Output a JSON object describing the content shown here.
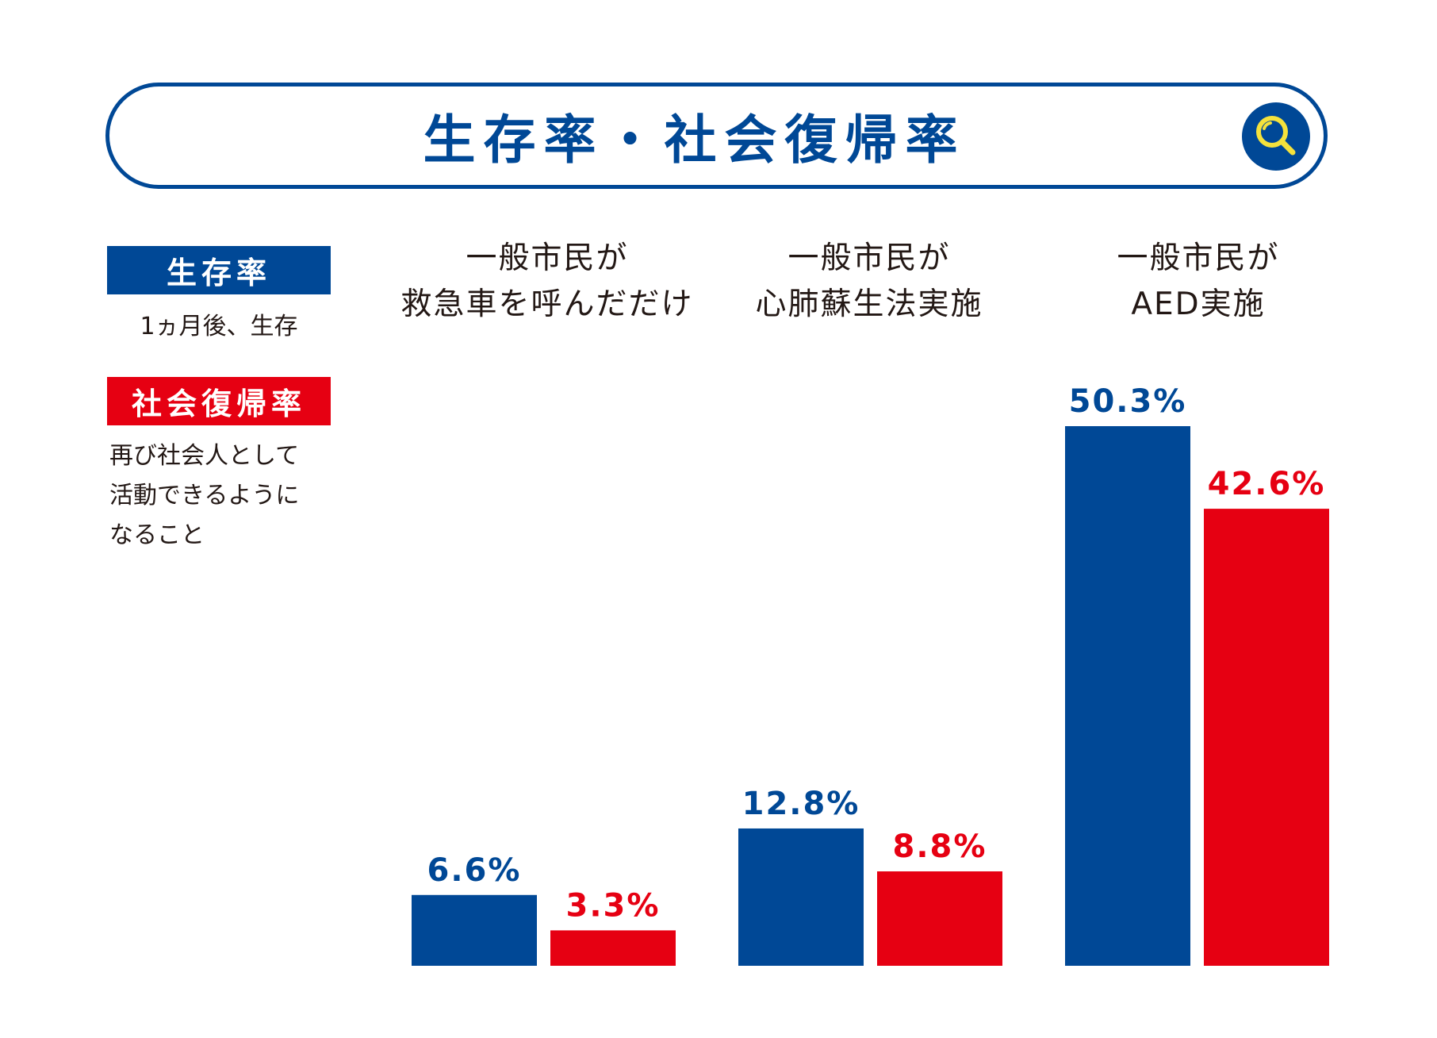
{
  "title": "生存率・社会復帰率",
  "icons": {
    "search": "search-icon"
  },
  "colors": {
    "survival": "#004896",
    "social": "#E60012",
    "text": "#231815",
    "badge_ring": "#F5E23C"
  },
  "legend": {
    "survival": {
      "label": "生存率",
      "description": "1ヵ月後、生存"
    },
    "social": {
      "label": "社会復帰率",
      "description_lines": [
        "再び社会人として",
        "活動できるように",
        "なること"
      ]
    }
  },
  "chart_data": {
    "type": "bar",
    "title": "生存率・社会復帰率",
    "categories": [
      [
        "一般市民が",
        "救急車を呼んだだけ"
      ],
      [
        "一般市民が",
        "心肺蘇生法実施"
      ],
      [
        "一般市民が",
        "AED実施"
      ]
    ],
    "series": [
      {
        "name": "生存率",
        "values": [
          6.6,
          12.8,
          50.3
        ],
        "labels": [
          "6.6%",
          "12.8%",
          "50.3%"
        ]
      },
      {
        "name": "社会復帰率",
        "values": [
          3.3,
          8.8,
          42.6
        ],
        "labels": [
          "3.3%",
          "8.8%",
          "42.6%"
        ]
      }
    ],
    "unit": "%",
    "ylim": [
      0,
      60
    ],
    "grid": false,
    "legend_position": "left"
  }
}
